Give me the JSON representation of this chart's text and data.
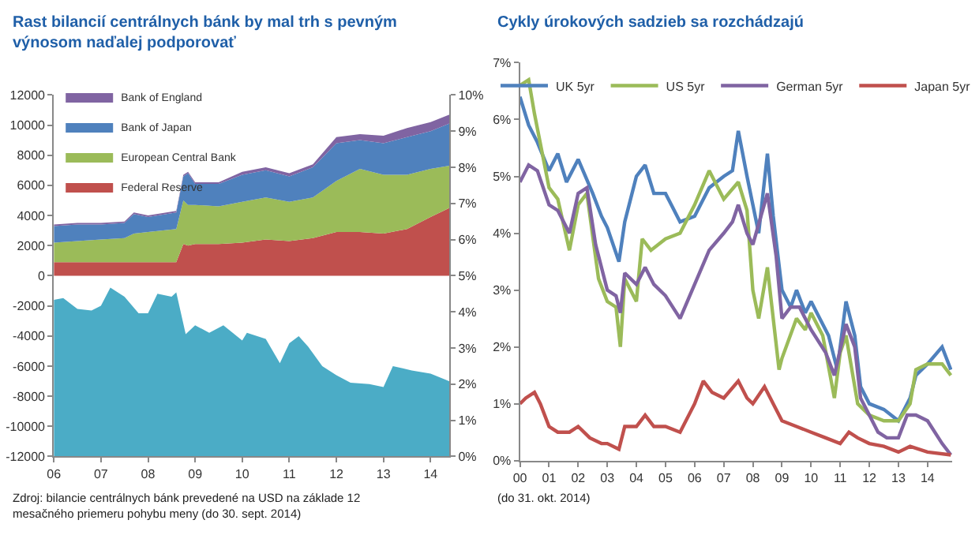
{
  "chart_data": [
    {
      "type": "area",
      "title": "Rast bilancií centrálnych bánk by mal trh s pevným výnosom naďalej podporovať",
      "stacked": true,
      "legend": "top left",
      "x": [
        2006,
        2006.5,
        2007,
        2007.5,
        2007.7,
        2008,
        2008.6,
        2008.75,
        2008.85,
        2009,
        2009.5,
        2010,
        2010.5,
        2011,
        2011.5,
        2012,
        2012.5,
        2013,
        2013.5,
        2014,
        2014.4
      ],
      "xlim": [
        2006,
        2014.4
      ],
      "xticks": [
        {
          "value": 2006,
          "label": "06"
        },
        {
          "value": 2007,
          "label": "07"
        },
        {
          "value": 2008,
          "label": "08"
        },
        {
          "value": 2009,
          "label": "09"
        },
        {
          "value": 2010,
          "label": "10"
        },
        {
          "value": 2011,
          "label": "11"
        },
        {
          "value": 2012,
          "label": "12"
        },
        {
          "value": 2013,
          "label": "13"
        },
        {
          "value": 2014,
          "label": "14"
        }
      ],
      "ylim": [
        -12000,
        12000
      ],
      "yticks": [
        -12000,
        -10000,
        -8000,
        -6000,
        -4000,
        -2000,
        0,
        2000,
        4000,
        6000,
        8000,
        10000,
        12000
      ],
      "y2lim": [
        0,
        10
      ],
      "y2ticks": [
        {
          "value": 0,
          "label": "0%"
        },
        {
          "value": 1,
          "label": "1%"
        },
        {
          "value": 2,
          "label": "2%"
        },
        {
          "value": 3,
          "label": "3%"
        },
        {
          "value": 4,
          "label": "4%"
        },
        {
          "value": 5,
          "label": "5%"
        },
        {
          "value": 6,
          "label": "6%"
        },
        {
          "value": 7,
          "label": "7%"
        },
        {
          "value": 8,
          "label": "8%"
        },
        {
          "value": 9,
          "label": "9%"
        },
        {
          "value": 10,
          "label": "10%"
        }
      ],
      "series": [
        {
          "name": "Federal Reserve",
          "color": "#c0504d",
          "values": [
            900,
            900,
            900,
            900,
            900,
            900,
            900,
            2100,
            2000,
            2100,
            2100,
            2200,
            2400,
            2300,
            2500,
            2900,
            2900,
            2800,
            3100,
            3900,
            4500
          ]
        },
        {
          "name": "European Central Bank",
          "color": "#9bbb59",
          "values": [
            1300,
            1400,
            1500,
            1600,
            1900,
            2000,
            2200,
            2900,
            2700,
            2600,
            2500,
            2700,
            2800,
            2600,
            2700,
            3400,
            4200,
            3900,
            3600,
            3200,
            2800
          ]
        },
        {
          "name": "Bank of Japan",
          "color": "#4f81bd",
          "values": [
            1100,
            1100,
            1000,
            1000,
            1300,
            1000,
            1100,
            1600,
            2100,
            1400,
            1500,
            1800,
            1800,
            1700,
            2000,
            2500,
            1900,
            2100,
            2500,
            2500,
            2800
          ]
        },
        {
          "name": "Bank of England",
          "color": "#8064a2",
          "values": [
            100,
            100,
            100,
            100,
            100,
            100,
            100,
            100,
            100,
            100,
            100,
            200,
            200,
            200,
            200,
            400,
            400,
            500,
            600,
            600,
            600
          ]
        },
        {
          "type": "area",
          "axis": "y2",
          "color": "#4bacc6",
          "x": [
            2006,
            2006.2,
            2006.5,
            2006.8,
            2007,
            2007.2,
            2007.5,
            2007.8,
            2008,
            2008.2,
            2008.5,
            2008.6,
            2008.8,
            2009,
            2009.3,
            2009.6,
            2010,
            2010.1,
            2010.5,
            2010.8,
            2011,
            2011.2,
            2011.4,
            2011.7,
            2012,
            2012.3,
            2012.7,
            2013,
            2013.2,
            2013.6,
            2014,
            2014.3,
            2014.4
          ],
          "values": [
            4.33,
            4.38,
            4.08,
            4.04,
            4.17,
            4.67,
            4.42,
            3.96,
            3.96,
            4.5,
            4.42,
            4.54,
            3.38,
            3.63,
            3.42,
            3.63,
            3.21,
            3.42,
            3.25,
            2.58,
            3.13,
            3.33,
            3.04,
            2.5,
            2.25,
            2.04,
            2.0,
            1.92,
            2.5,
            2.38,
            2.29,
            2.13,
            2.08
          ]
        }
      ],
      "annotations": [
        "Zdroj: bilancie centrálnych bánk prevedené na USD na základe 12 mesačného priemeru pohybu meny (do 30. sept. 2014)"
      ]
    },
    {
      "type": "line",
      "title": "Cykly úrokových sadzieb sa rozchádzajú",
      "legend": "top",
      "xlim": [
        2000,
        2014.85
      ],
      "xticks": [
        {
          "value": 2000,
          "label": "00"
        },
        {
          "value": 2001,
          "label": "01"
        },
        {
          "value": 2002,
          "label": "02"
        },
        {
          "value": 2003,
          "label": "03"
        },
        {
          "value": 2004,
          "label": "04"
        },
        {
          "value": 2005,
          "label": "05"
        },
        {
          "value": 2006,
          "label": "06"
        },
        {
          "value": 2007,
          "label": "07"
        },
        {
          "value": 2008,
          "label": "08"
        },
        {
          "value": 2009,
          "label": "09"
        },
        {
          "value": 2010,
          "label": "10"
        },
        {
          "value": 2011,
          "label": "11"
        },
        {
          "value": 2012,
          "label": "12"
        },
        {
          "value": 2013,
          "label": "13"
        },
        {
          "value": 2014,
          "label": "14"
        }
      ],
      "ylim": [
        0,
        7
      ],
      "yticks": [
        {
          "value": 0,
          "label": "0%"
        },
        {
          "value": 1,
          "label": "1%"
        },
        {
          "value": 2,
          "label": "2%"
        },
        {
          "value": 3,
          "label": "3%"
        },
        {
          "value": 4,
          "label": "4%"
        },
        {
          "value": 5,
          "label": "5%"
        },
        {
          "value": 6,
          "label": "6%"
        },
        {
          "value": 7,
          "label": "7%"
        }
      ],
      "series": [
        {
          "name": "UK 5yr",
          "color": "#4f81bd",
          "x": [
            2000,
            2000.3,
            2000.6,
            2001,
            2001.3,
            2001.6,
            2002,
            2002.5,
            2002.8,
            2003,
            2003.4,
            2003.6,
            2004,
            2004.3,
            2004.6,
            2005,
            2005.5,
            2006,
            2006.5,
            2007,
            2007.3,
            2007.5,
            2007.8,
            2008,
            2008.2,
            2008.5,
            2008.7,
            2009,
            2009.3,
            2009.5,
            2009.8,
            2010,
            2010.2,
            2010.6,
            2010.9,
            2011.2,
            2011.5,
            2011.7,
            2012,
            2012.5,
            2013,
            2013.4,
            2013.6,
            2014,
            2014.5,
            2014.8
          ],
          "values": [
            6.4,
            5.9,
            5.6,
            5.1,
            5.4,
            4.9,
            5.3,
            4.7,
            4.3,
            4.1,
            3.5,
            4.2,
            5.0,
            5.2,
            4.7,
            4.7,
            4.2,
            4.3,
            4.8,
            5.0,
            5.1,
            5.8,
            5.0,
            4.5,
            4.0,
            5.4,
            4.3,
            3.0,
            2.7,
            3.0,
            2.6,
            2.8,
            2.6,
            2.2,
            1.6,
            2.8,
            2.2,
            1.3,
            1.0,
            0.9,
            0.7,
            1.1,
            1.5,
            1.7,
            2.0,
            1.6
          ]
        },
        {
          "name": "US 5yr",
          "color": "#9bbb59",
          "x": [
            2000,
            2000.3,
            2000.5,
            2001,
            2001.3,
            2001.7,
            2002,
            2002.3,
            2002.7,
            2003,
            2003.3,
            2003.45,
            2003.6,
            2004,
            2004.2,
            2004.5,
            2005,
            2005.5,
            2006,
            2006.5,
            2007,
            2007.5,
            2007.8,
            2008,
            2008.2,
            2008.5,
            2008.9,
            2009,
            2009.5,
            2009.8,
            2010,
            2010.4,
            2010.8,
            2011,
            2011.2,
            2011.6,
            2012,
            2012.5,
            2013,
            2013.4,
            2013.6,
            2014,
            2014.5,
            2014.8
          ],
          "values": [
            6.6,
            6.7,
            6.1,
            4.8,
            4.6,
            3.7,
            4.5,
            4.7,
            3.2,
            2.8,
            2.7,
            2.0,
            3.2,
            2.8,
            3.9,
            3.7,
            3.9,
            4.0,
            4.5,
            5.1,
            4.6,
            4.9,
            4.4,
            3.0,
            2.5,
            3.4,
            1.6,
            1.8,
            2.5,
            2.3,
            2.6,
            2.2,
            1.1,
            1.9,
            2.2,
            1.0,
            0.8,
            0.7,
            0.7,
            1.0,
            1.6,
            1.7,
            1.7,
            1.5
          ]
        },
        {
          "name": "German 5yr",
          "color": "#8064a2",
          "x": [
            2000,
            2000.3,
            2000.6,
            2001,
            2001.3,
            2001.7,
            2002,
            2002.3,
            2002.6,
            2003,
            2003.3,
            2003.45,
            2003.6,
            2004,
            2004.3,
            2004.6,
            2005,
            2005.5,
            2006,
            2006.5,
            2007,
            2007.3,
            2007.5,
            2007.8,
            2008,
            2008.5,
            2008.8,
            2009,
            2009.3,
            2009.6,
            2010,
            2010.5,
            2010.8,
            2011.2,
            2011.5,
            2011.7,
            2012,
            2012.3,
            2012.6,
            2013,
            2013.3,
            2013.6,
            2014,
            2014.5,
            2014.8
          ],
          "values": [
            4.9,
            5.2,
            5.1,
            4.5,
            4.4,
            4.0,
            4.7,
            4.8,
            3.8,
            3.0,
            2.9,
            2.6,
            3.3,
            3.1,
            3.4,
            3.1,
            2.9,
            2.5,
            3.1,
            3.7,
            4.0,
            4.2,
            4.5,
            4.0,
            3.8,
            4.7,
            3.6,
            2.5,
            2.7,
            2.7,
            2.3,
            1.9,
            1.5,
            2.4,
            2.0,
            1.1,
            0.8,
            0.5,
            0.4,
            0.4,
            0.8,
            0.8,
            0.7,
            0.3,
            0.1
          ]
        },
        {
          "name": "Japan 5yr",
          "color": "#c0504d",
          "x": [
            2000,
            2000.2,
            2000.5,
            2000.7,
            2001,
            2001.3,
            2001.7,
            2002,
            2002.4,
            2002.8,
            2003,
            2003.4,
            2003.6,
            2004,
            2004.3,
            2004.6,
            2005,
            2005.5,
            2006,
            2006.3,
            2006.6,
            2007,
            2007.5,
            2007.8,
            2008,
            2008.4,
            2008.7,
            2009,
            2009.5,
            2010,
            2010.5,
            2011,
            2011.3,
            2011.6,
            2012,
            2012.5,
            2013,
            2013.4,
            2014,
            2014.8
          ],
          "values": [
            1.0,
            1.1,
            1.2,
            1.0,
            0.6,
            0.5,
            0.5,
            0.6,
            0.4,
            0.3,
            0.3,
            0.2,
            0.6,
            0.6,
            0.8,
            0.6,
            0.6,
            0.5,
            1.0,
            1.4,
            1.2,
            1.1,
            1.4,
            1.1,
            1.0,
            1.3,
            1.0,
            0.7,
            0.6,
            0.5,
            0.4,
            0.3,
            0.5,
            0.4,
            0.3,
            0.25,
            0.15,
            0.25,
            0.15,
            0.1
          ]
        }
      ],
      "annotations": [
        "(do 31. okt. 2014)"
      ]
    }
  ]
}
